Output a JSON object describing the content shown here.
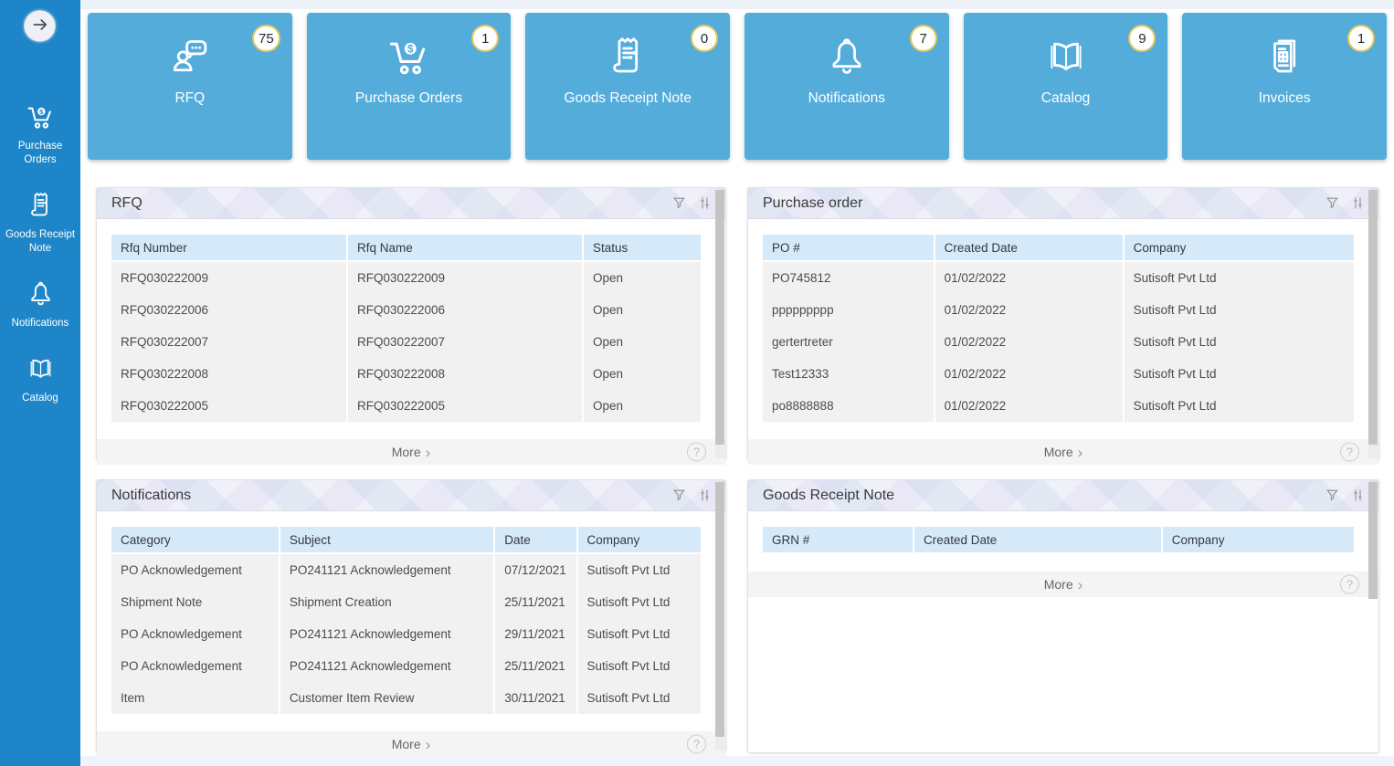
{
  "colors": {
    "sidebar_blue": "#1e86c8",
    "tile_blue": "#54acdb",
    "badge_border_gold": "#e3c65c",
    "table_header_blue": "#d5e9f9",
    "row_gray": "#f1f1f1"
  },
  "glyphs": {
    "more_chevron": "›",
    "help": "?"
  },
  "sidebar": {
    "items": [
      {
        "id": "purchase-orders",
        "label": "Purchase Orders",
        "icon": "cart-dollar-icon"
      },
      {
        "id": "goods-receipt-note",
        "label": "Goods Receipt Note",
        "icon": "receipt-icon"
      },
      {
        "id": "notifications",
        "label": "Notifications",
        "icon": "bell-icon"
      },
      {
        "id": "catalog",
        "label": "Catalog",
        "icon": "book-icon"
      }
    ]
  },
  "tiles": [
    {
      "id": "rfq",
      "label": "RFQ",
      "count": "75",
      "icon": "person-chat-icon"
    },
    {
      "id": "purchase-orders",
      "label": "Purchase Orders",
      "count": "1",
      "icon": "cart-dollar-icon"
    },
    {
      "id": "goods-receipt-note",
      "label": "Goods Receipt Note",
      "count": "0",
      "icon": "receipt-icon"
    },
    {
      "id": "notifications",
      "label": "Notifications",
      "count": "7",
      "icon": "bell-icon"
    },
    {
      "id": "catalog",
      "label": "Catalog",
      "count": "9",
      "icon": "book-icon"
    },
    {
      "id": "invoices",
      "label": "Invoices",
      "count": "1",
      "icon": "invoice-icon"
    }
  ],
  "panels": {
    "rfq": {
      "title": "RFQ",
      "columns": [
        "Rfq Number",
        "Rfq Name",
        "Status"
      ],
      "rows": [
        [
          "RFQ030222009",
          "RFQ030222009",
          "Open"
        ],
        [
          "RFQ030222006",
          "RFQ030222006",
          "Open"
        ],
        [
          "RFQ030222007",
          "RFQ030222007",
          "Open"
        ],
        [
          "RFQ030222008",
          "RFQ030222008",
          "Open"
        ],
        [
          "RFQ030222005",
          "RFQ030222005",
          "Open"
        ]
      ],
      "more_label": "More"
    },
    "purchase_order": {
      "title": "Purchase order",
      "columns": [
        "PO #",
        "Created Date",
        "Company"
      ],
      "rows": [
        [
          "PO745812",
          "01/02/2022",
          "Sutisoft Pvt Ltd"
        ],
        [
          "ppppppppp",
          "01/02/2022",
          "Sutisoft Pvt Ltd"
        ],
        [
          "gertertreter",
          "01/02/2022",
          "Sutisoft Pvt Ltd"
        ],
        [
          "Test12333",
          "01/02/2022",
          "Sutisoft Pvt Ltd"
        ],
        [
          "po8888888",
          "01/02/2022",
          "Sutisoft Pvt Ltd"
        ]
      ],
      "more_label": "More"
    },
    "notifications": {
      "title": "Notifications",
      "columns": [
        "Category",
        "Subject",
        "Date",
        "Company"
      ],
      "rows": [
        [
          "PO Acknowledgement",
          "PO241121 Acknowledgement",
          "07/12/2021",
          "Sutisoft Pvt Ltd"
        ],
        [
          "Shipment Note",
          "Shipment Creation",
          "25/11/2021",
          "Sutisoft Pvt Ltd"
        ],
        [
          "PO Acknowledgement",
          "PO241121 Acknowledgement",
          "29/11/2021",
          "Sutisoft Pvt Ltd"
        ],
        [
          "PO Acknowledgement",
          "PO241121 Acknowledgement",
          "25/11/2021",
          "Sutisoft Pvt Ltd"
        ],
        [
          "Item",
          "Customer Item Review",
          "30/11/2021",
          "Sutisoft Pvt Ltd"
        ]
      ],
      "more_label": "More"
    },
    "grn": {
      "title": "Goods Receipt Note",
      "columns": [
        "GRN #",
        "Created Date",
        "Company"
      ],
      "rows": [],
      "more_label": "More"
    }
  }
}
